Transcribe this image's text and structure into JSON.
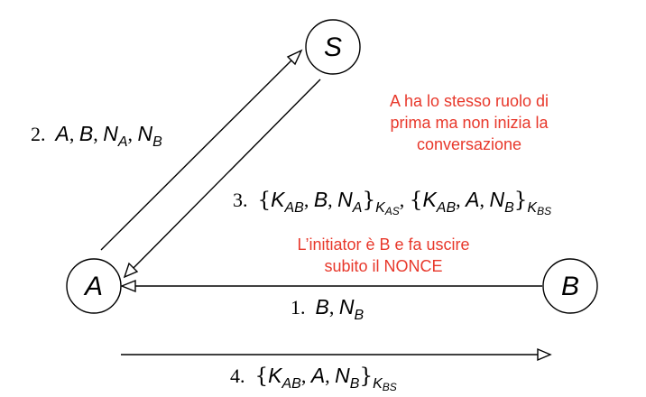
{
  "colors": {
    "ink": "#000000",
    "note": "#e8382b",
    "background": "#ffffff"
  },
  "nodes": {
    "a": "A",
    "b": "B",
    "s": "S"
  },
  "messages": {
    "m1": {
      "num": "1.",
      "parts": [
        "B",
        "N",
        "B"
      ]
    },
    "m2": {
      "num": "2.",
      "parts": [
        "A",
        "B",
        "N",
        "A",
        "N",
        "B"
      ]
    },
    "m3": {
      "num": "3.",
      "parts": [
        "K",
        "AB",
        "B",
        "N",
        "A",
        "K",
        "AS",
        "K",
        "AB",
        "A",
        "N",
        "B",
        "K",
        "BS"
      ]
    },
    "m4": {
      "num": "4.",
      "parts": [
        "K",
        "AB",
        "A",
        "N",
        "B",
        "K",
        "BS"
      ]
    }
  },
  "notes": {
    "top": [
      "A ha lo stesso ruolo di",
      "prima ma non inizia la",
      "conversazione"
    ],
    "middle": [
      "L’initiator è B e fa uscire",
      "subito il NONCE"
    ]
  }
}
